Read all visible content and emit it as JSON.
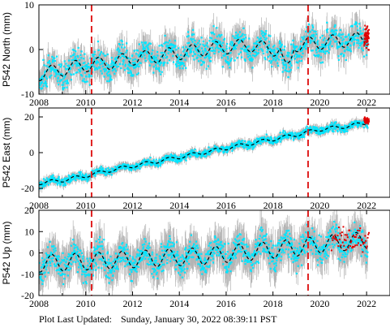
{
  "footer": {
    "label": "Plot Last Updated:",
    "timestamp": "Sunday, January 30, 2022 08:39:11 PST"
  },
  "colors": {
    "observations": "#00e5ff",
    "error_bars": "#b4b4b4",
    "model_fit": "#000000",
    "recent_points": "#e00000",
    "offset_lines": "#e02020"
  },
  "chart_data": [
    {
      "type": "scatter",
      "ylabel": "P542 North (mm)",
      "xlim": [
        2008,
        2023
      ],
      "ylim": [
        -10,
        10
      ],
      "xticks": [
        2008,
        2010,
        2012,
        2014,
        2016,
        2018,
        2020,
        2022
      ],
      "yticks": [
        -10,
        0,
        10
      ],
      "offset_epochs": [
        2010.25,
        2019.5
      ],
      "model": {
        "x": [
          2008,
          2009,
          2010,
          2011,
          2012,
          2013,
          2014,
          2015,
          2016,
          2017,
          2018,
          2019,
          2020,
          2021,
          2022
        ],
        "y": [
          -5.5,
          -4.5,
          -3.5,
          -3.0,
          -2.0,
          -1.5,
          -0.8,
          0.0,
          0.5,
          1.0,
          0.0,
          1.0,
          1.5,
          2.0,
          2.5
        ]
      },
      "seasonal_amplitude_mm": 1.5,
      "scatter_mm": 2.2,
      "error_bar_mm": 2.5,
      "transient": {
        "x": [
          2018.3,
          2018.9
        ],
        "y_change": -5
      },
      "recent_points": {
        "x_range": [
          2021.9,
          2022.1
        ],
        "y": 2.5
      }
    },
    {
      "type": "scatter",
      "ylabel": "P542 East (mm)",
      "xlim": [
        2008,
        2023
      ],
      "ylim": [
        -25,
        25
      ],
      "xticks": [
        2008,
        2010,
        2012,
        2014,
        2016,
        2018,
        2020,
        2022
      ],
      "yticks": [
        -20,
        0,
        20
      ],
      "offset_epochs": [
        2010.25,
        2019.5
      ],
      "model": {
        "x": [
          2008,
          2009,
          2010,
          2011,
          2012,
          2013,
          2014,
          2015,
          2016,
          2017,
          2018,
          2019,
          2020,
          2021,
          2022
        ],
        "y": [
          -17,
          -15.5,
          -13,
          -10,
          -7.5,
          -5,
          -2.5,
          0,
          2.5,
          5,
          7.5,
          10,
          13,
          14.5,
          16.5
        ]
      },
      "seasonal_amplitude_mm": 1.0,
      "scatter_mm": 1.5,
      "error_bar_mm": 2.0,
      "recent_points": {
        "x_range": [
          2021.9,
          2022.1
        ],
        "y": 18
      }
    },
    {
      "type": "scatter",
      "ylabel": "P542 Up (mm)",
      "xlim": [
        2008,
        2023
      ],
      "ylim": [
        -20,
        20
      ],
      "xticks": [
        2008,
        2010,
        2012,
        2014,
        2016,
        2018,
        2020,
        2022
      ],
      "yticks": [
        -20,
        -10,
        0,
        10,
        20
      ],
      "offset_epochs": [
        2010.25,
        2019.5
      ],
      "model": {
        "x": [
          2008,
          2009,
          2010,
          2011,
          2012,
          2013,
          2014,
          2015,
          2016,
          2017,
          2018,
          2019,
          2020,
          2021,
          2022
        ],
        "y": [
          -5,
          -4.5,
          -4,
          -3.5,
          -3,
          -2.5,
          -2,
          -1.5,
          -0.5,
          0.5,
          1.5,
          2.5,
          4,
          5,
          6
        ]
      },
      "seasonal_amplitude_mm": 4.0,
      "scatter_mm": 4.5,
      "error_bar_mm": 7.0,
      "recent_points": {
        "x_range": [
          2020.5,
          2022.1
        ],
        "y": 6
      }
    }
  ]
}
